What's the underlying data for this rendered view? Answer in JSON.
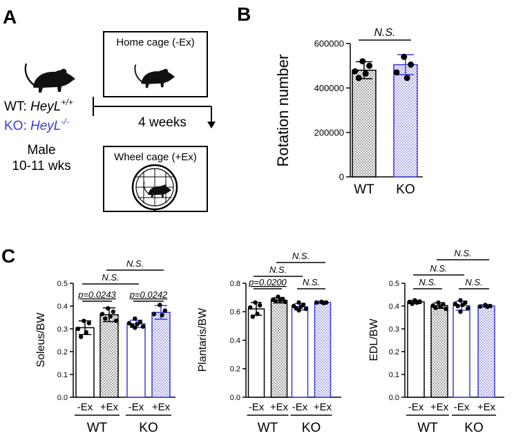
{
  "panels": {
    "a": {
      "label": "A",
      "wt_prefix": "WT: ",
      "wt_gene": "HeyL",
      "wt_genotype": "+/+",
      "ko_prefix": "KO: ",
      "ko_gene": "HeyL",
      "ko_genotype": "-/-",
      "sex": "Male",
      "age": "10-11 wks",
      "home_cage": "Home cage (-Ex)",
      "wheel_cage": "Wheel cage (+Ex)",
      "duration": "4 weeks"
    },
    "b": {
      "label": "B"
    },
    "c": {
      "label": "C"
    }
  },
  "colors": {
    "wt": "#000000",
    "ko": "#3a3ad6",
    "stipple": "#222222"
  },
  "chart_data": [
    {
      "id": "rotation",
      "type": "bar",
      "panel": "B",
      "ylabel": "Rotation number",
      "ylim": [
        0,
        600000
      ],
      "yticks": [
        0,
        200000,
        400000,
        600000
      ],
      "ytick_labels": [
        "0",
        "200000",
        "400000",
        "600000"
      ],
      "categories": [
        "WT",
        "KO"
      ],
      "means": [
        480000,
        505000
      ],
      "sd": [
        38000,
        45000
      ],
      "points": [
        [
          520000,
          500000,
          475000,
          465000,
          445000
        ],
        [
          540000,
          505000,
          470000,
          445000
        ]
      ],
      "significance": [
        {
          "label": "N.S.",
          "between": [
            0,
            1
          ]
        }
      ]
    },
    {
      "id": "soleus",
      "type": "bar",
      "panel": "C",
      "ylabel": "Soleus/BW",
      "ylim": [
        0,
        0.5
      ],
      "yticks": [
        0,
        0.1,
        0.2,
        0.3,
        0.4,
        0.5
      ],
      "ytick_labels": [
        "0.0",
        "0.1",
        "0.2",
        "0.3",
        "0.4",
        "0.5"
      ],
      "categories": [
        "-Ex",
        "+Ex",
        "-Ex",
        "+Ex"
      ],
      "groups": [
        "WT",
        "KO"
      ],
      "means": [
        0.305,
        0.362,
        0.322,
        0.372
      ],
      "sd": [
        0.03,
        0.03,
        0.016,
        0.03
      ],
      "points": [
        [
          0.335,
          0.325,
          0.3,
          0.285,
          0.265
        ],
        [
          0.39,
          0.375,
          0.365,
          0.355,
          0.345,
          0.335
        ],
        [
          0.345,
          0.33,
          0.325,
          0.32,
          0.315,
          0.31,
          0.305
        ],
        [
          0.405,
          0.38,
          0.365,
          0.36
        ]
      ],
      "significance": [
        {
          "label": "p=0.0243",
          "between": [
            0,
            1
          ]
        },
        {
          "label": "p=0.0242",
          "between": [
            2,
            3
          ]
        },
        {
          "label": "N.S.",
          "between": [
            0,
            2
          ]
        },
        {
          "label": "N.S.",
          "between": [
            1,
            3
          ]
        }
      ]
    },
    {
      "id": "plantaris",
      "type": "bar",
      "panel": "C",
      "ylabel": "Plantaris/BW",
      "ylim": [
        0,
        0.8
      ],
      "yticks": [
        0,
        0.2,
        0.4,
        0.6,
        0.8
      ],
      "ytick_labels": [
        "0.0",
        "0.2",
        "0.4",
        "0.6",
        "0.8"
      ],
      "categories": [
        "-Ex",
        "+Ex",
        "-Ex",
        "+Ex"
      ],
      "groups": [
        "WT",
        "KO"
      ],
      "means": [
        0.62,
        0.68,
        0.635,
        0.665
      ],
      "sd": [
        0.045,
        0.018,
        0.022,
        0.008
      ],
      "points": [
        [
          0.665,
          0.645,
          0.63,
          0.585,
          0.565
        ],
        [
          0.705,
          0.69,
          0.685,
          0.68,
          0.675,
          0.67
        ],
        [
          0.665,
          0.65,
          0.64,
          0.635,
          0.625,
          0.62,
          0.61
        ],
        [
          0.67,
          0.665,
          0.665,
          0.66
        ]
      ],
      "significance": [
        {
          "label": "p=0.0200",
          "between": [
            0,
            1
          ]
        },
        {
          "label": "N.S.",
          "between": [
            2,
            3
          ]
        },
        {
          "label": "N.S.",
          "between": [
            0,
            2
          ]
        },
        {
          "label": "N.S.",
          "between": [
            1,
            3
          ]
        }
      ]
    },
    {
      "id": "edl",
      "type": "bar",
      "panel": "C",
      "ylabel": "EDL/BW",
      "ylim": [
        0,
        0.5
      ],
      "yticks": [
        0,
        0.1,
        0.2,
        0.3,
        0.4,
        0.5
      ],
      "ytick_labels": [
        "0.0",
        "0.1",
        "0.2",
        "0.3",
        "0.4",
        "0.5"
      ],
      "categories": [
        "-Ex",
        "+Ex",
        "-Ex",
        "+Ex"
      ],
      "groups": [
        "WT",
        "KO"
      ],
      "means": [
        0.418,
        0.402,
        0.402,
        0.4
      ],
      "sd": [
        0.007,
        0.012,
        0.02,
        0.006
      ],
      "points": [
        [
          0.425,
          0.42,
          0.418,
          0.415,
          0.41
        ],
        [
          0.415,
          0.408,
          0.402,
          0.398,
          0.392,
          0.388
        ],
        [
          0.425,
          0.415,
          0.41,
          0.405,
          0.4,
          0.39,
          0.375
        ],
        [
          0.405,
          0.4,
          0.398,
          0.397
        ]
      ],
      "significance": [
        {
          "label": "N.S.",
          "between": [
            0,
            1
          ]
        },
        {
          "label": "N.S.",
          "between": [
            2,
            3
          ]
        },
        {
          "label": "N.S.",
          "between": [
            0,
            2
          ]
        },
        {
          "label": "N.S.",
          "between": [
            1,
            3
          ]
        }
      ]
    }
  ]
}
